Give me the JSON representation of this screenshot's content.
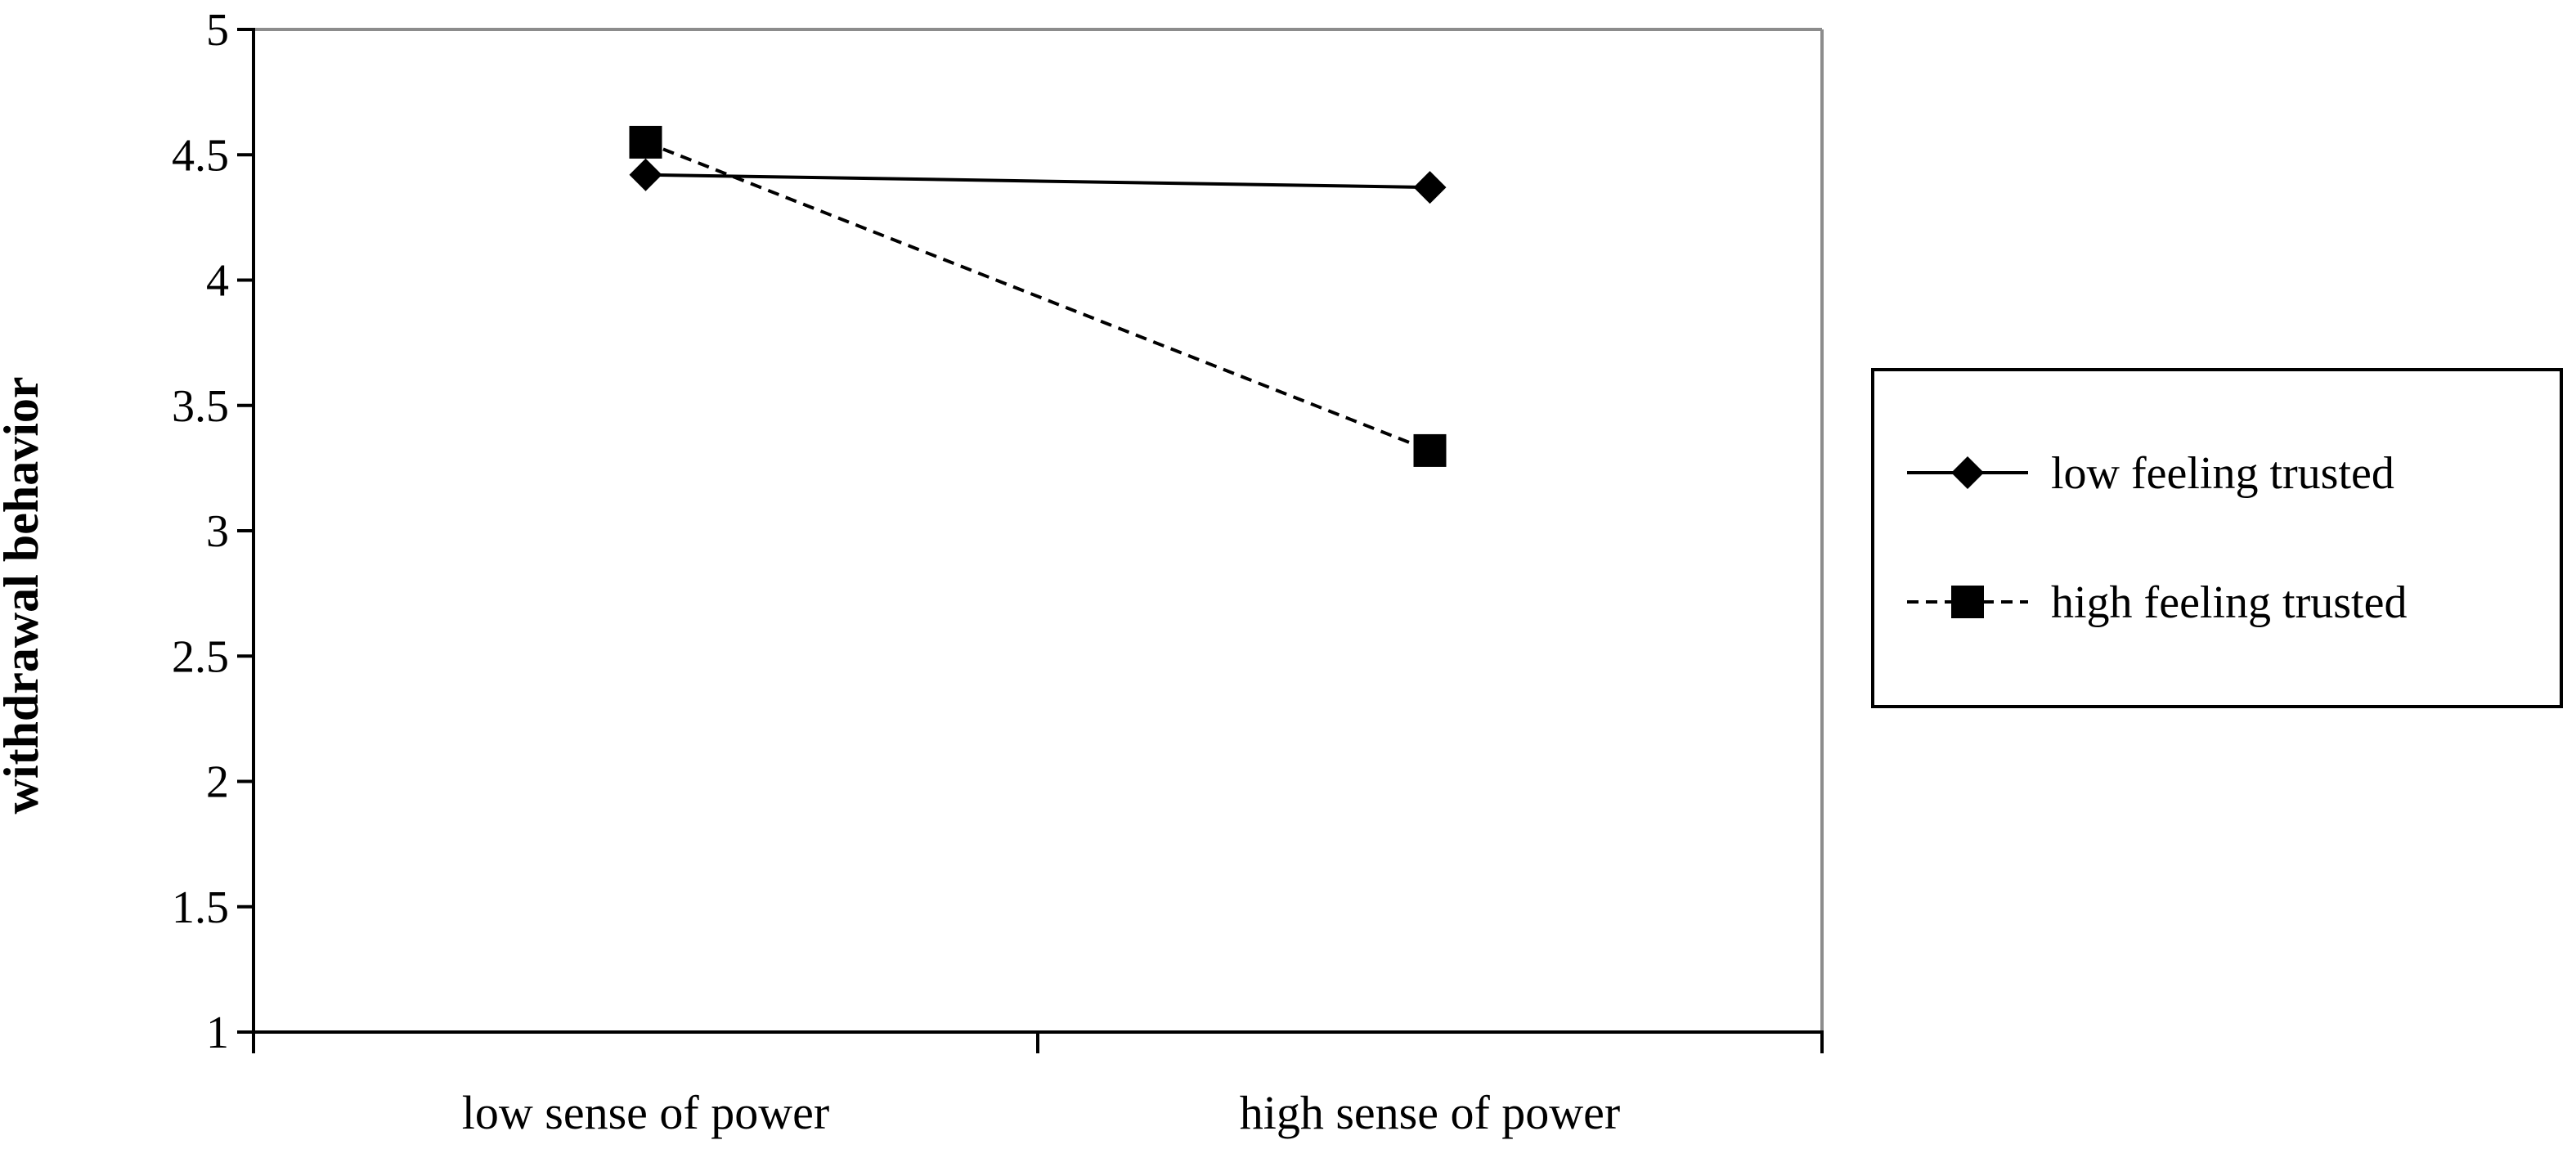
{
  "chart_data": {
    "type": "line",
    "title": "",
    "xlabel": "",
    "ylabel": "withdrawal behavior",
    "ylim": [
      1,
      5
    ],
    "yticks": [
      1,
      1.5,
      2,
      2.5,
      3,
      3.5,
      4,
      4.5,
      5
    ],
    "ytick_labels": [
      "1",
      "1.5",
      "2",
      "2.5",
      "3",
      "3.5",
      "4",
      "4.5",
      "5"
    ],
    "categories": [
      "low sense of power",
      "high sense of power"
    ],
    "grid": false,
    "legend_position": "right",
    "series": [
      {
        "name": "low feeling trusted",
        "values": [
          4.42,
          4.37
        ],
        "line_style": "solid",
        "marker": "diamond",
        "color": "#000000"
      },
      {
        "name": "high feeling trusted",
        "values": [
          4.55,
          3.32
        ],
        "line_style": "dashed",
        "marker": "square",
        "color": "#000000"
      }
    ]
  }
}
